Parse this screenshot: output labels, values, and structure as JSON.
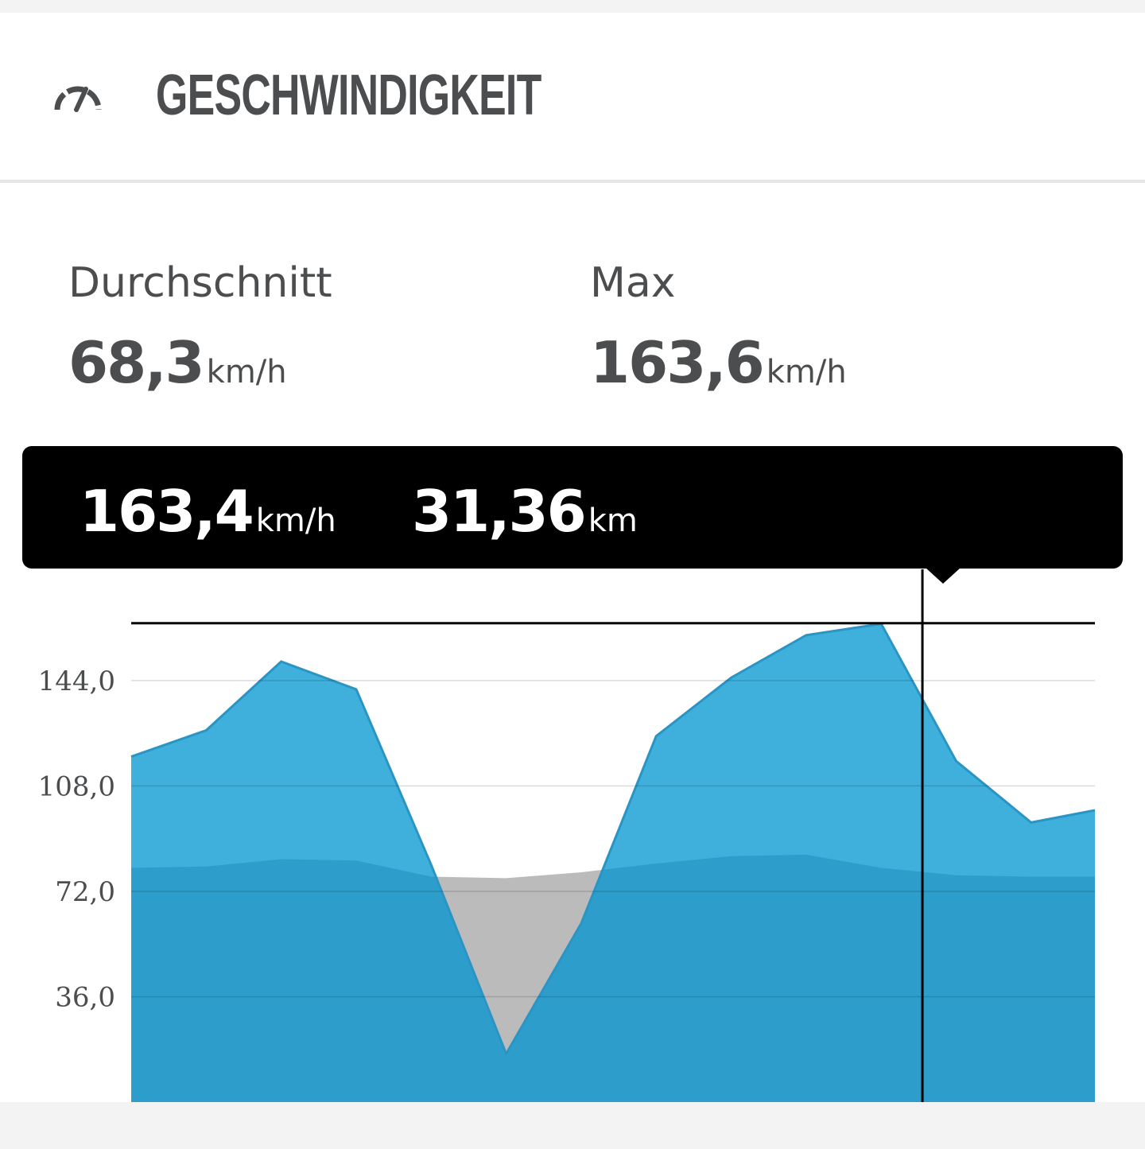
{
  "header": {
    "title": "GESCHWINDIGKEIT",
    "icon": "speedometer-icon"
  },
  "stats": {
    "average": {
      "label": "Durchschnitt",
      "value": "68,3",
      "unit": "km/h"
    },
    "max": {
      "label": "Max",
      "value": "163,6",
      "unit": "km/h"
    }
  },
  "tooltip": {
    "speed_value": "163,4",
    "speed_unit": "km/h",
    "distance_value": "31,36",
    "distance_unit": "km"
  },
  "colors": {
    "speed_area": "#3fb0dc",
    "speed_line": "#2a95c4",
    "comparison_area": "#2d9ecb",
    "below_area": "#bbbbbb",
    "text": "#4b4d4f"
  },
  "chart_data": {
    "type": "area",
    "x": [
      0,
      1,
      2,
      3,
      4,
      5,
      6,
      7,
      8,
      9,
      10,
      11,
      12
    ],
    "series": [
      {
        "values": [
          118.0,
          127.0,
          150.5,
          141.0,
          81.0,
          16.5,
          61.0,
          125.0,
          145.0,
          159.5,
          163.4,
          116.5,
          95.5
        ]
      },
      {
        "values": [
          80.0,
          80.5,
          83.0,
          82.5,
          77.0,
          76.5,
          78.5,
          81.5,
          84.0,
          84.5,
          80.0,
          77.5,
          77.0
        ]
      }
    ],
    "x_max": 12.85,
    "max_line": 163.6,
    "cursor_x": 10.55,
    "yticks": [
      36,
      72,
      108,
      144
    ],
    "ytick_labels": [
      "36,0",
      "72,0",
      "108,0",
      "144,0"
    ],
    "ylim": [
      0,
      182
    ],
    "grid": true
  }
}
